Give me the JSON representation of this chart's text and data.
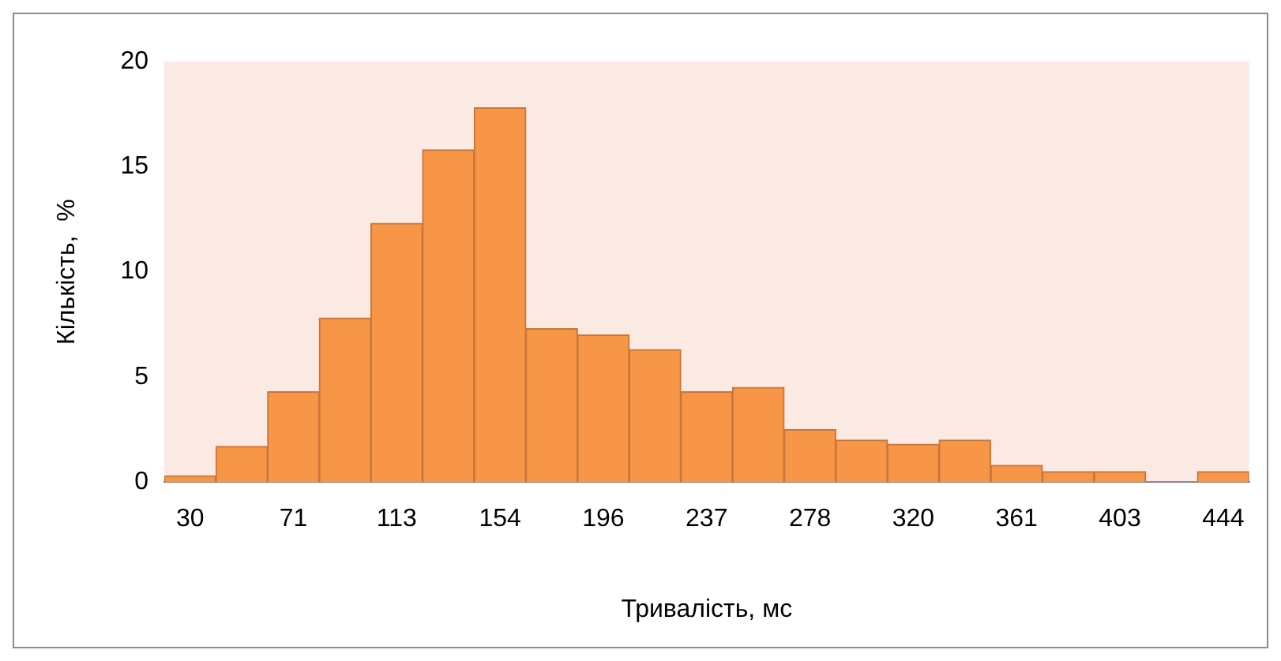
{
  "chart_data": {
    "type": "bar",
    "xlabel": "Тривалість, мс",
    "ylabel": "Кількість,  %",
    "categories": [
      "30",
      null,
      "71",
      null,
      "113",
      null,
      "154",
      null,
      "196",
      null,
      "237",
      null,
      "278",
      null,
      "320",
      null,
      "361",
      null,
      "403",
      null,
      "444"
    ],
    "values": [
      0.3,
      1.7,
      4.3,
      7.8,
      12.3,
      15.8,
      17.8,
      7.3,
      7.0,
      6.3,
      4.3,
      4.5,
      2.5,
      2.0,
      1.8,
      2.0,
      0.8,
      0.5,
      0.5,
      0,
      0.5
    ],
    "color": "#f79646",
    "ylim": [
      0,
      20
    ],
    "yticks": [
      0,
      5,
      10,
      15,
      20
    ],
    "grid": false,
    "legend": false
  }
}
